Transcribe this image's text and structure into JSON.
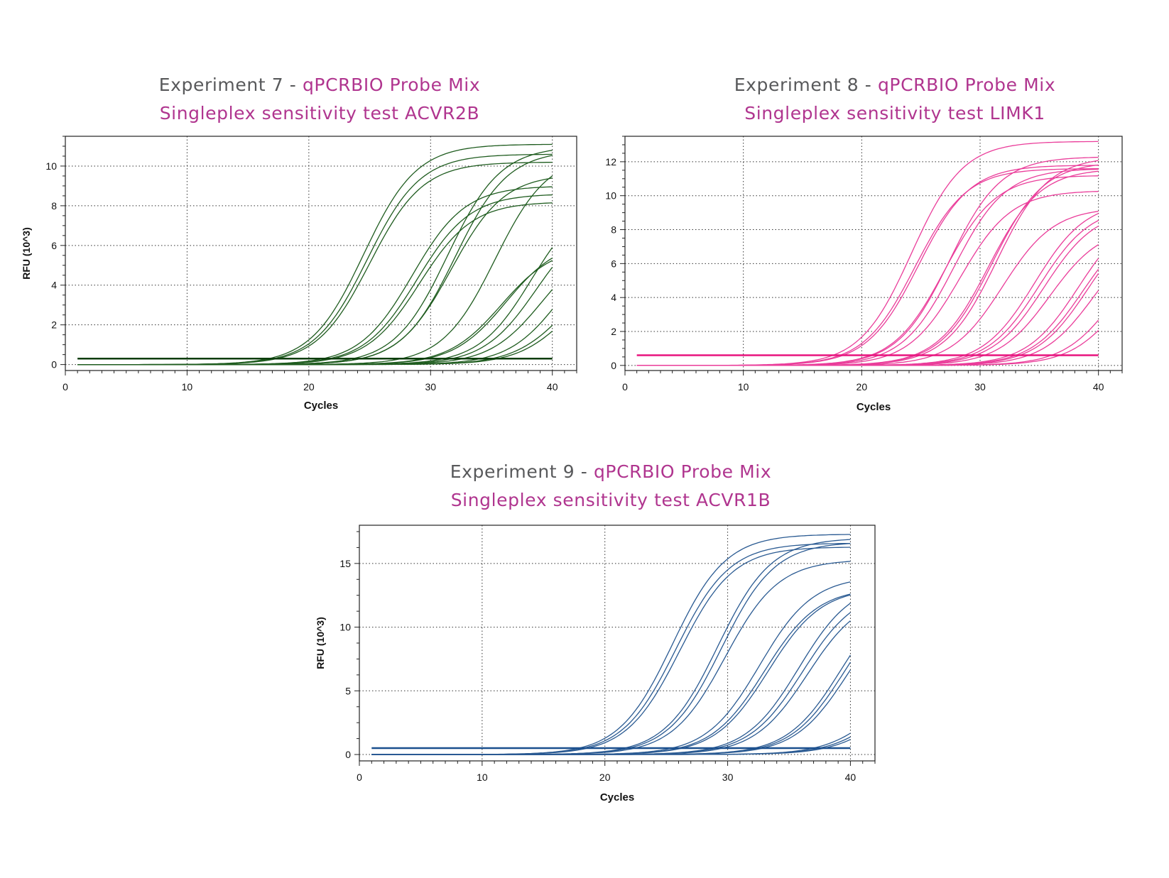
{
  "colors": {
    "title_grey": "#58595b",
    "title_magenta": "#b0358f"
  },
  "charts": [
    {
      "title_prefix": "Experiment 7 - ",
      "title_highlight": "qPCRBIO Probe Mix",
      "subtitle": "Singleplex sensitivity test ACVR2B",
      "line_color": "#1f5c1f",
      "threshold_color": "#0d3d0d"
    },
    {
      "title_prefix": "Experiment 8 - ",
      "title_highlight": "qPCRBIO Probe Mix",
      "subtitle": "Singleplex sensitivity test LIMK1",
      "line_color": "#ea3d9a",
      "threshold_color": "#e8147e"
    },
    {
      "title_prefix": "Experiment 9 - ",
      "title_highlight": "qPCRBIO Probe Mix",
      "subtitle": "Singleplex sensitivity test ACVR1B",
      "line_color": "#2a5a92",
      "threshold_color": "#1a4f8e"
    }
  ],
  "chart_data": [
    {
      "type": "line",
      "xlabel": "Cycles",
      "ylabel": "RFU (10^3)",
      "xlim": [
        0,
        42
      ],
      "ylim": [
        -0.3,
        11.5
      ],
      "xticks": [
        0,
        10,
        20,
        30,
        40
      ],
      "yticks": [
        0,
        2,
        4,
        6,
        8,
        10
      ],
      "grid": true,
      "threshold": 0.3,
      "series": [
        {
          "ct": 20.5,
          "max": 11.1
        },
        {
          "ct": 20.8,
          "max": 10.6
        },
        {
          "ct": 21.0,
          "max": 10.2
        },
        {
          "ct": 24.5,
          "max": 9.0
        },
        {
          "ct": 24.9,
          "max": 8.6
        },
        {
          "ct": 25.1,
          "max": 8.2
        },
        {
          "ct": 27.4,
          "max": 11.0
        },
        {
          "ct": 27.7,
          "max": 9.6
        },
        {
          "ct": 28.0,
          "max": 10.8
        },
        {
          "ct": 31.3,
          "max": 10.6
        },
        {
          "ct": 31.8,
          "max": 6.0
        },
        {
          "ct": 32.2,
          "max": 6.3
        },
        {
          "ct": 34.3,
          "max": 8.6
        },
        {
          "ct": 34.7,
          "max": 7.6
        },
        {
          "ct": 35.2,
          "max": 6.4
        },
        {
          "ct": 36.8,
          "max": 6.8
        },
        {
          "ct": 37.2,
          "max": 5.4
        },
        {
          "ct": 37.6,
          "max": 5.2
        }
      ]
    },
    {
      "type": "line",
      "xlabel": "Cycles",
      "ylabel": "RFU (10^3)",
      "xlim": [
        0,
        42
      ],
      "ylim": [
        -0.3,
        13.5
      ],
      "xticks": [
        0,
        10,
        20,
        30,
        40
      ],
      "yticks": [
        0,
        2,
        4,
        6,
        8,
        10,
        12
      ],
      "grid": true,
      "threshold": 0.6,
      "series": [
        {
          "ct": 20.2,
          "max": 13.2
        },
        {
          "ct": 20.5,
          "max": 11.6
        },
        {
          "ct": 20.8,
          "max": 11.8
        },
        {
          "ct": 23.0,
          "max": 11.2
        },
        {
          "ct": 23.4,
          "max": 12.3
        },
        {
          "ct": 23.8,
          "max": 11.6
        },
        {
          "ct": 24.3,
          "max": 10.3
        },
        {
          "ct": 26.7,
          "max": 11.6
        },
        {
          "ct": 27.0,
          "max": 12.0
        },
        {
          "ct": 27.4,
          "max": 12.3
        },
        {
          "ct": 27.9,
          "max": 9.3
        },
        {
          "ct": 30.6,
          "max": 9.7
        },
        {
          "ct": 31.0,
          "max": 9.4
        },
        {
          "ct": 31.4,
          "max": 9.2
        },
        {
          "ct": 31.9,
          "max": 8.2
        },
        {
          "ct": 34.3,
          "max": 9.2
        },
        {
          "ct": 34.7,
          "max": 8.8
        },
        {
          "ct": 35.1,
          "max": 9.0
        },
        {
          "ct": 35.6,
          "max": 8.1
        },
        {
          "ct": 37.5,
          "max": 8.0
        },
        {
          "ct": 37.9,
          "max": 7.0
        }
      ]
    },
    {
      "type": "line",
      "xlabel": "Cycles",
      "ylabel": "RFU (10^3)",
      "xlim": [
        0,
        42
      ],
      "ylim": [
        -0.5,
        18
      ],
      "xticks": [
        0,
        10,
        20,
        30,
        40
      ],
      "yticks": [
        0,
        5,
        10,
        15
      ],
      "grid": true,
      "threshold": 0.5,
      "series": [
        {
          "ct": 21.5,
          "max": 17.3
        },
        {
          "ct": 21.8,
          "max": 16.6
        },
        {
          "ct": 22.1,
          "max": 16.3
        },
        {
          "ct": 25.2,
          "max": 17.0
        },
        {
          "ct": 25.5,
          "max": 16.7
        },
        {
          "ct": 25.8,
          "max": 15.3
        },
        {
          "ct": 28.6,
          "max": 14.0
        },
        {
          "ct": 29.0,
          "max": 13.1
        },
        {
          "ct": 29.3,
          "max": 13.1
        },
        {
          "ct": 31.8,
          "max": 13.6
        },
        {
          "ct": 32.1,
          "max": 13.0
        },
        {
          "ct": 32.5,
          "max": 12.6
        },
        {
          "ct": 35.2,
          "max": 13.2
        },
        {
          "ct": 35.5,
          "max": 13.0
        },
        {
          "ct": 35.8,
          "max": 12.7
        },
        {
          "ct": 38.6,
          "max": 7.2
        },
        {
          "ct": 38.9,
          "max": 6.6
        },
        {
          "ct": 39.2,
          "max": 6.3
        }
      ]
    }
  ]
}
